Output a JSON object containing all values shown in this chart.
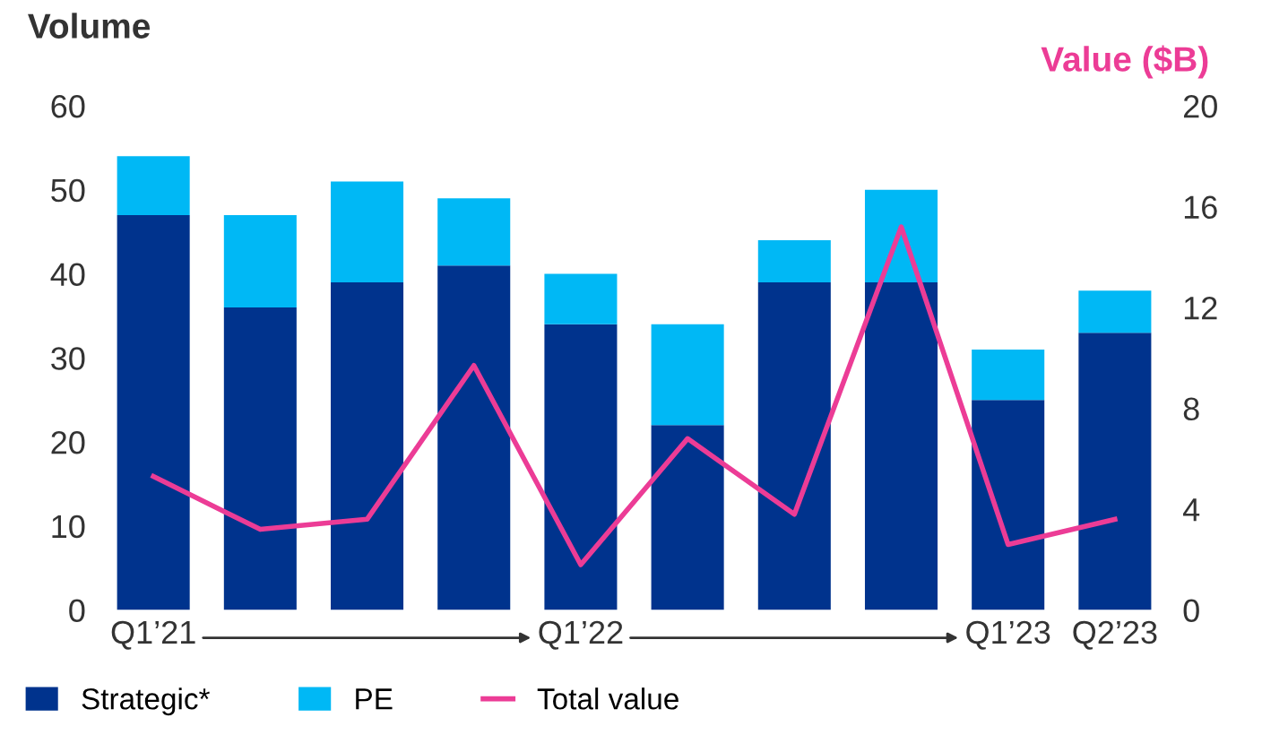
{
  "chart_data": {
    "type": "bar",
    "stacked": true,
    "ylabel": "Volume",
    "y2label": "Value ($B)",
    "categories": [
      "Q1’21",
      null,
      null,
      null,
      "Q1’22",
      null,
      null,
      null,
      "Q1’23",
      "Q2’23"
    ],
    "series": [
      {
        "name": "Strategic*",
        "color": "#00338d",
        "values": [
          47,
          36,
          39,
          41,
          34,
          22,
          39,
          39,
          25,
          33
        ]
      },
      {
        "name": "PE",
        "color": "#00b8f5",
        "values": [
          7,
          11,
          12,
          8,
          6,
          12,
          5,
          11,
          6,
          5
        ]
      },
      {
        "name": "Total value",
        "type": "line",
        "axis": "y2",
        "color": "#ec3c96",
        "values": [
          5.3,
          3.2,
          3.6,
          9.7,
          1.8,
          6.8,
          3.8,
          15.2,
          2.6,
          3.6
        ]
      }
    ],
    "ylim": [
      0,
      60
    ],
    "yticks": [
      0,
      10,
      20,
      30,
      40,
      50,
      60
    ],
    "y2lim": [
      0,
      20
    ],
    "y2ticks": [
      0,
      4,
      8,
      12,
      16,
      20
    ],
    "grid": false,
    "legend": "bottom left"
  }
}
